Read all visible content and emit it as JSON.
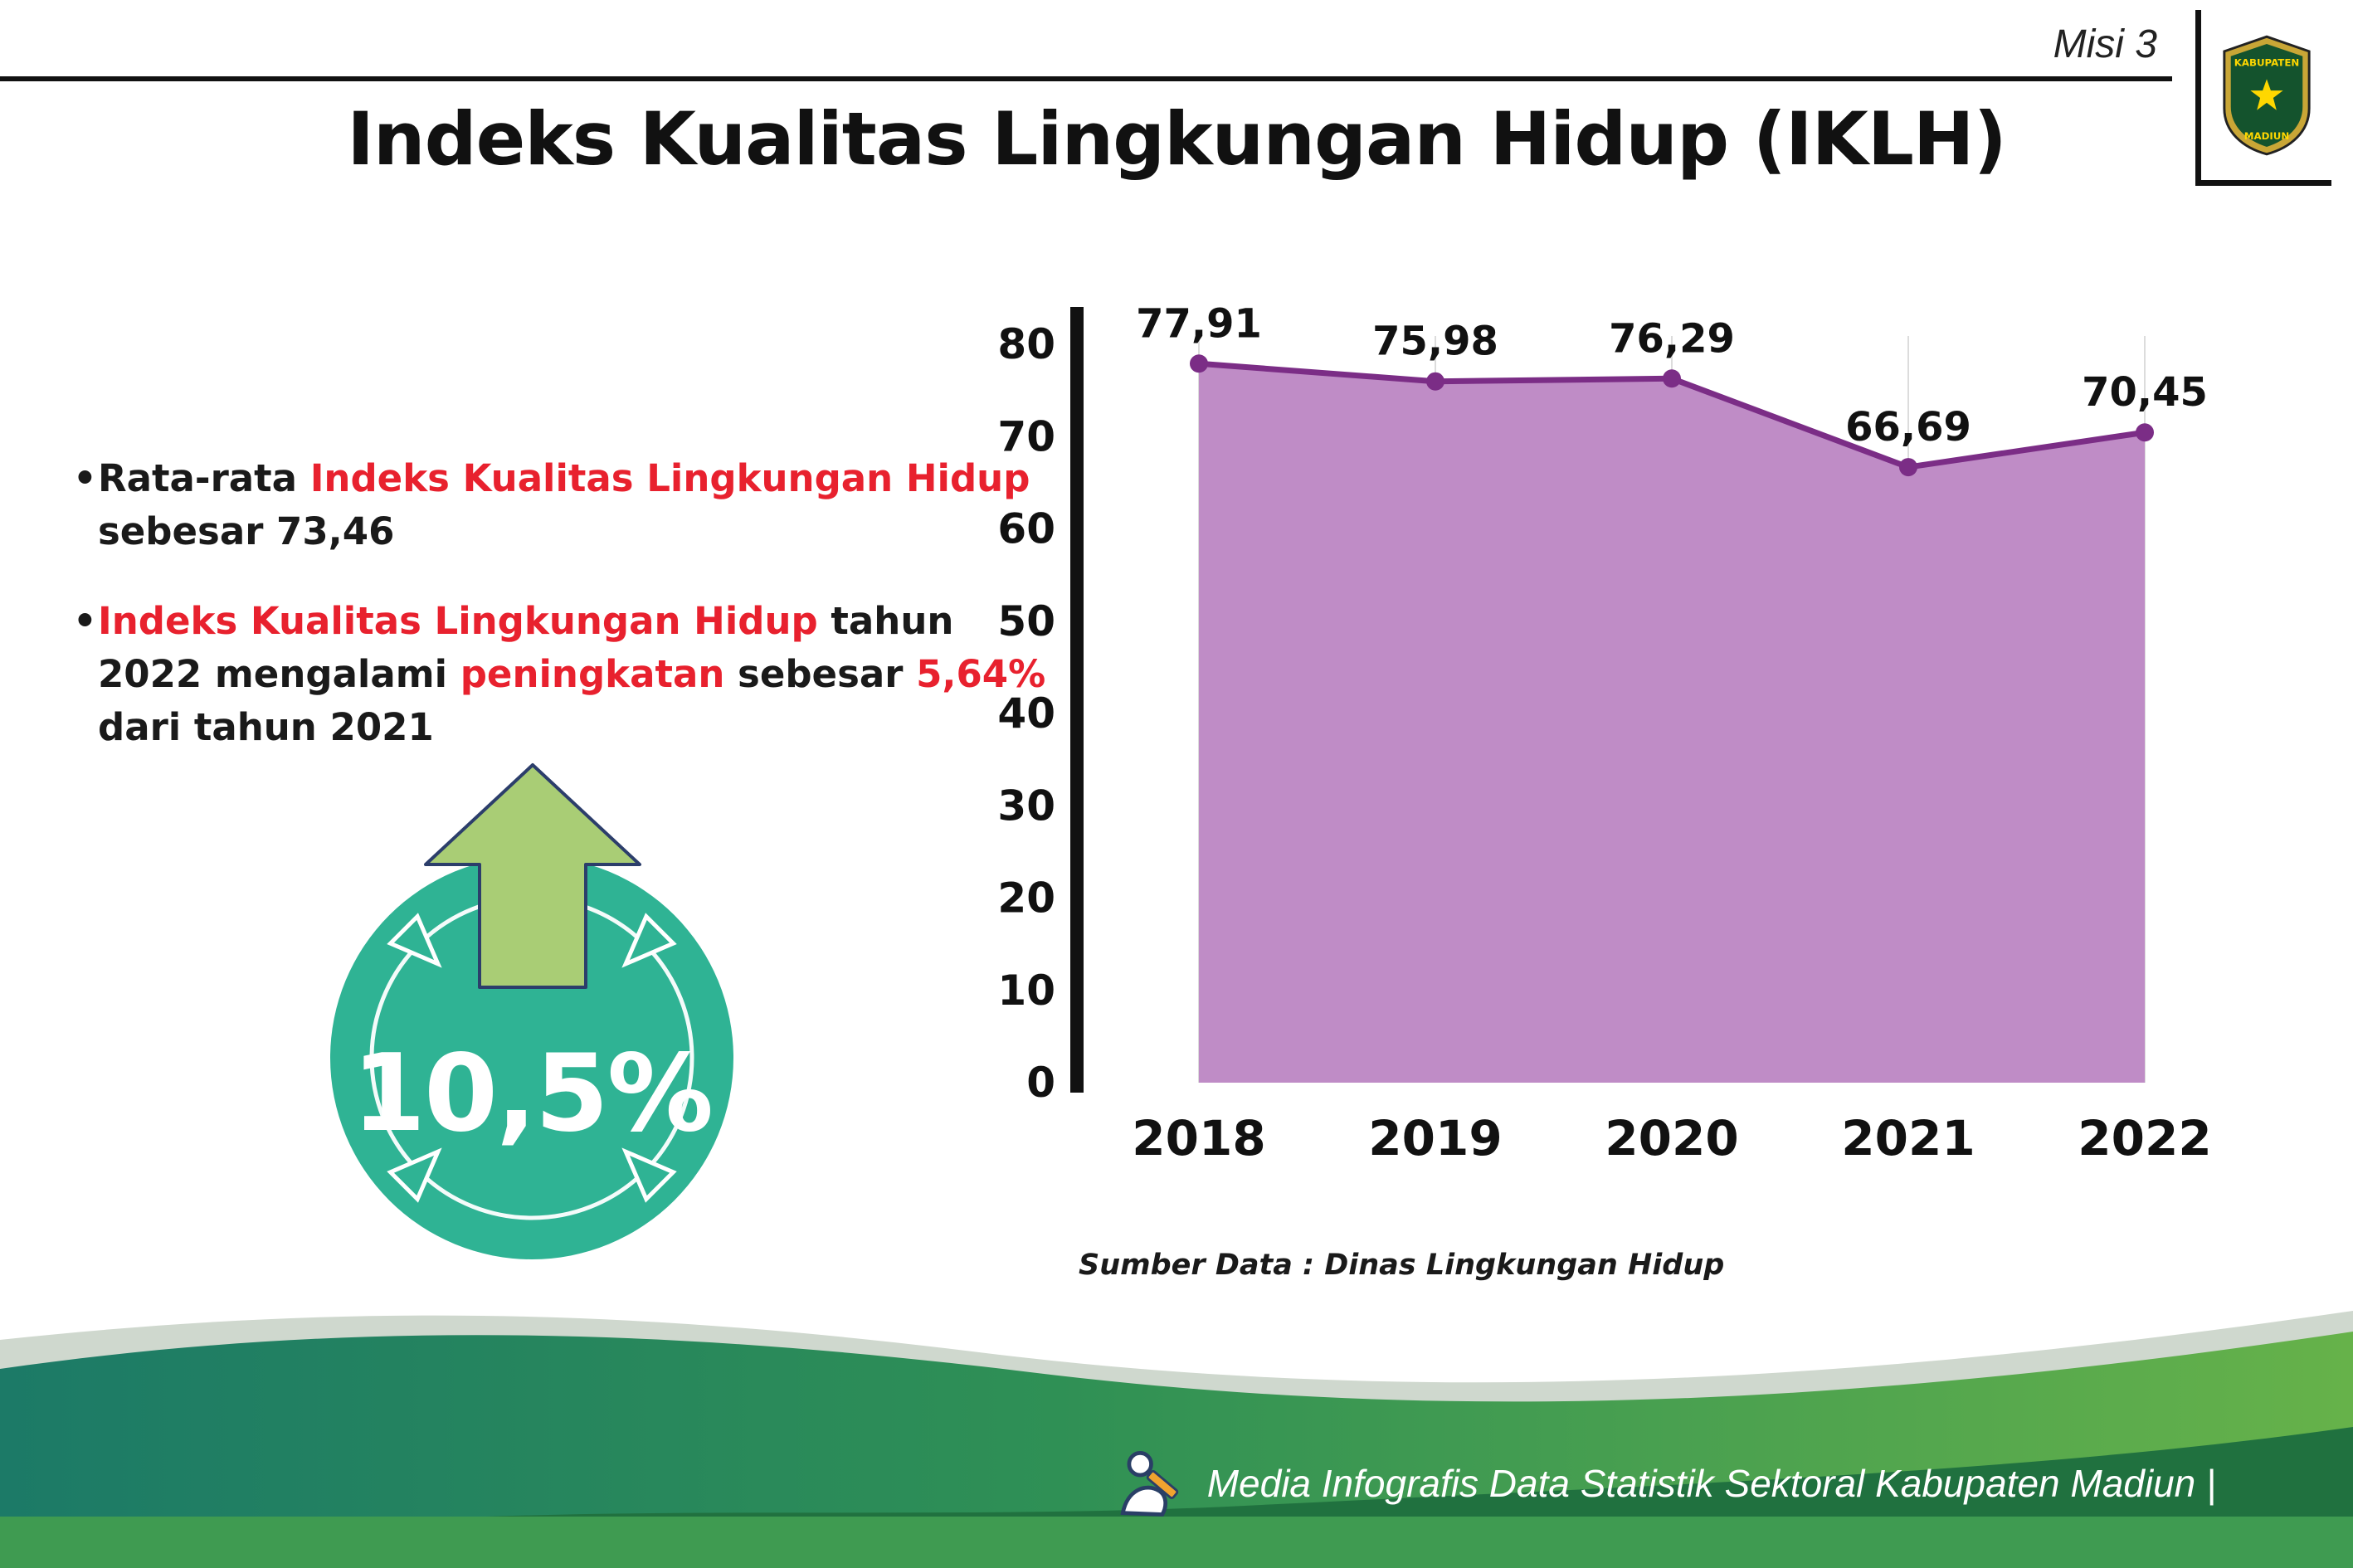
{
  "page": {
    "misi_label": "Misi 3",
    "title": "Indeks Kualitas Lingkungan Hidup (IKLH)"
  },
  "logo": {
    "top_text": "KABUPATEN",
    "bottom_text": "MADIUN"
  },
  "bullets": [
    {
      "segments": [
        {
          "text": "Rata-rata ",
          "red": false
        },
        {
          "text": "Indeks Kualitas Lingkungan Hidup",
          "red": true
        },
        {
          "text": " sebesar 73,46",
          "red": false
        }
      ]
    },
    {
      "segments": [
        {
          "text": "Indeks Kualitas Lingkungan Hidup",
          "red": true
        },
        {
          "text": " tahun 2022 mengalami ",
          "red": false
        },
        {
          "text": "peningkatan",
          "red": true
        },
        {
          "text": " sebesar ",
          "red": false
        },
        {
          "text": "5,64%",
          "red": true
        },
        {
          "text": " dari tahun 2021",
          "red": false
        }
      ]
    }
  ],
  "badge": {
    "value": "10,5%",
    "circle_color": "#2fb394",
    "arrow_color": "#a9cd75"
  },
  "chart_data": {
    "type": "area",
    "categories": [
      "2018",
      "2019",
      "2020",
      "2021",
      "2022"
    ],
    "values": [
      77.91,
      75.98,
      76.29,
      66.69,
      70.45
    ],
    "point_labels": [
      "77,91",
      "75,98",
      "76,29",
      "66,69",
      "70,45"
    ],
    "ylim": [
      0,
      80
    ],
    "yticks": [
      0,
      10,
      20,
      30,
      40,
      50,
      60,
      70,
      80
    ],
    "grid": "light vertical gridlines per year",
    "fill_color": "#bf8cc6",
    "line_color": "#7b2d86",
    "source_note": "Sumber Data : Dinas Lingkungan Hidup"
  },
  "footer": {
    "credit": "Media Infografis Data Statistik Sektoral Kabupaten Madiun |"
  }
}
